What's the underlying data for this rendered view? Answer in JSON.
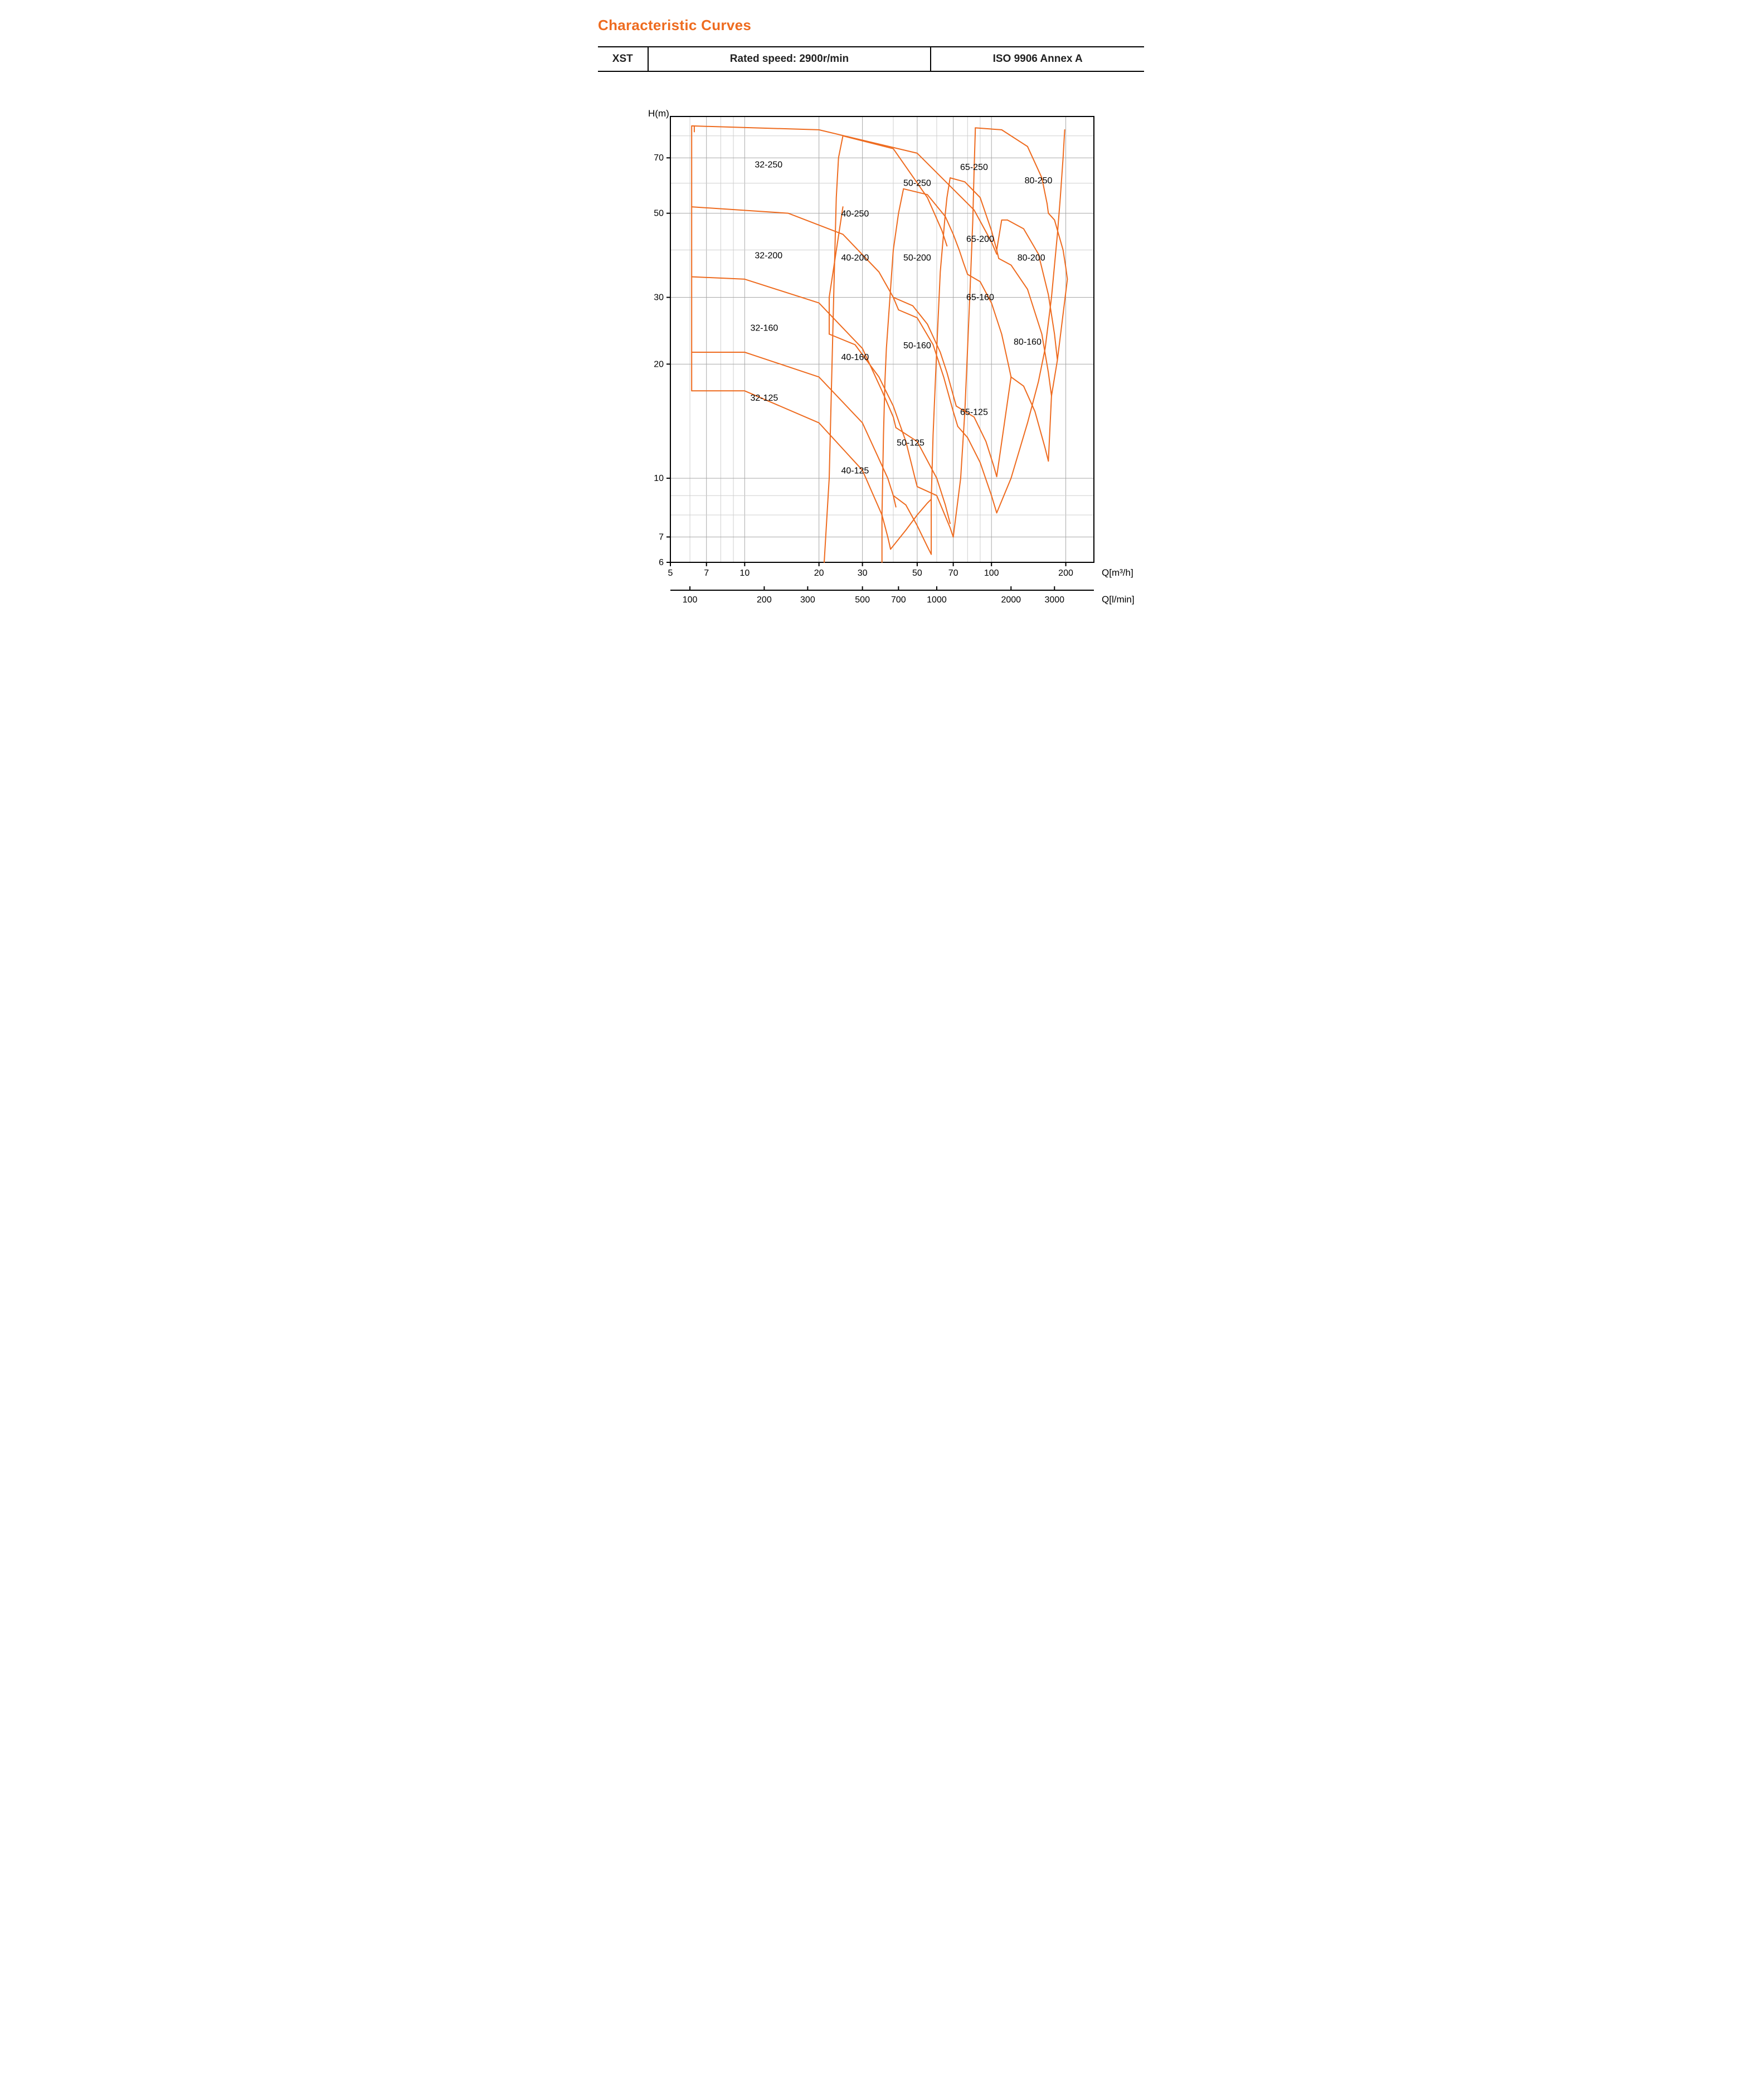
{
  "title": {
    "text": "Characteristic Curves",
    "color": "#ee6b1f",
    "fontsize": 26
  },
  "header": {
    "cells": [
      "XST",
      "Rated speed: 2900r/min",
      "ISO 9906    Annex A"
    ],
    "border_color": "#000000",
    "font_size": 19
  },
  "chart": {
    "type": "pump-selection-map-loglog",
    "curve_color": "#ee6b1f",
    "background_color": "#ffffff",
    "grid_major_color": "#a8a8a8",
    "grid_minor_color": "#cfcfcf",
    "yaxis": {
      "label": "H(m)",
      "scale": "log",
      "min": 6,
      "max": 90,
      "ticks": [
        6,
        7,
        10,
        20,
        30,
        50,
        70
      ],
      "minor": [
        6,
        7,
        8,
        9,
        10,
        20,
        30,
        40,
        50,
        60,
        70,
        80,
        90
      ]
    },
    "xaxis_top": {
      "label": "Q[m³/h]",
      "scale": "log",
      "min": 5,
      "max": 260,
      "ticks": [
        5,
        7,
        10,
        20,
        30,
        50,
        70,
        100,
        200
      ],
      "minor": [
        5,
        6,
        7,
        8,
        9,
        10,
        20,
        30,
        40,
        50,
        60,
        70,
        80,
        90,
        100,
        200
      ]
    },
    "xaxis_bottom": {
      "label": "Q[l/min]",
      "ticks_lmin": [
        100,
        200,
        300,
        500,
        700,
        1000,
        2000,
        3000
      ]
    },
    "region_labels": [
      {
        "text": "32-250",
        "q": 12.5,
        "h": 66
      },
      {
        "text": "40-250",
        "q": 28,
        "h": 49
      },
      {
        "text": "50-250",
        "q": 50,
        "h": 59
      },
      {
        "text": "65-250",
        "q": 85,
        "h": 65
      },
      {
        "text": "80-250",
        "q": 155,
        "h": 60
      },
      {
        "text": "32-200",
        "q": 12.5,
        "h": 38
      },
      {
        "text": "40-200",
        "q": 28,
        "h": 37.5
      },
      {
        "text": "50-200",
        "q": 50,
        "h": 37.5
      },
      {
        "text": "65-200",
        "q": 90,
        "h": 42
      },
      {
        "text": "80-200",
        "q": 145,
        "h": 37.5
      },
      {
        "text": "32-160",
        "q": 12,
        "h": 24.5
      },
      {
        "text": "40-160",
        "q": 28,
        "h": 20.5
      },
      {
        "text": "50-160",
        "q": 50,
        "h": 22
      },
      {
        "text": "65-160",
        "q": 90,
        "h": 29.5
      },
      {
        "text": "80-160",
        "q": 140,
        "h": 22.5
      },
      {
        "text": "32-125",
        "q": 12,
        "h": 16
      },
      {
        "text": "40-125",
        "q": 28,
        "h": 10.3
      },
      {
        "text": "50-125",
        "q": 47,
        "h": 12.2
      },
      {
        "text": "65-125",
        "q": 85,
        "h": 14.7
      }
    ],
    "curves_qh": [
      [
        [
          6.1,
          17
        ],
        [
          6.1,
          85
        ],
        [
          20,
          83
        ],
        [
          50,
          72
        ],
        [
          85,
          51
        ],
        [
          100,
          42
        ],
        [
          105,
          39
        ]
      ],
      [
        [
          6.1,
          17
        ],
        [
          10,
          17
        ],
        [
          20,
          14
        ],
        [
          30,
          10.5
        ],
        [
          36,
          8
        ],
        [
          38,
          7
        ],
        [
          39,
          6.5
        ]
      ],
      [
        [
          6.1,
          21.5
        ],
        [
          10,
          21.5
        ],
        [
          20,
          18.5
        ],
        [
          30,
          14
        ],
        [
          38,
          10
        ],
        [
          40,
          9
        ],
        [
          41,
          8.4
        ]
      ],
      [
        [
          6.1,
          34
        ],
        [
          10,
          33.5
        ],
        [
          20,
          29
        ],
        [
          30,
          22
        ],
        [
          36,
          17
        ],
        [
          40,
          14.5
        ],
        [
          41,
          13.6
        ]
      ],
      [
        [
          6.1,
          52
        ],
        [
          15,
          50
        ],
        [
          25,
          44
        ],
        [
          35,
          35
        ],
        [
          40,
          30
        ],
        [
          42,
          27.8
        ]
      ],
      [
        [
          6.25,
          82
        ],
        [
          6.25,
          85
        ]
      ],
      [
        [
          21,
          6
        ],
        [
          22,
          10
        ],
        [
          23,
          32
        ],
        [
          23.5,
          55
        ],
        [
          24,
          70
        ],
        [
          25,
          80
        ]
      ],
      [
        [
          25,
          80
        ],
        [
          40,
          74
        ],
        [
          55,
          55
        ],
        [
          63,
          45
        ],
        [
          66,
          41
        ]
      ],
      [
        [
          25,
          52
        ],
        [
          22,
          30
        ],
        [
          22,
          24
        ]
      ],
      [
        [
          36,
          6
        ],
        [
          36,
          8
        ],
        [
          36.5,
          13
        ],
        [
          37,
          18
        ],
        [
          37.5,
          22
        ],
        [
          40,
          40
        ],
        [
          42,
          50
        ],
        [
          44,
          58
        ]
      ],
      [
        [
          22,
          24
        ],
        [
          28,
          22.5
        ],
        [
          35,
          18.5
        ],
        [
          40,
          15.5
        ],
        [
          45,
          12.5
        ],
        [
          49,
          10
        ],
        [
          50,
          9.5
        ]
      ],
      [
        [
          40,
          9
        ],
        [
          45,
          8.5
        ],
        [
          50,
          7.5
        ],
        [
          55,
          6.6
        ],
        [
          57,
          6.3
        ]
      ],
      [
        [
          39,
          6.5
        ],
        [
          45,
          7.3
        ],
        [
          50,
          8
        ],
        [
          55,
          8.6
        ],
        [
          57,
          8.8
        ]
      ],
      [
        [
          57,
          6.3
        ],
        [
          57,
          8.8
        ],
        [
          58,
          13
        ],
        [
          60,
          22
        ],
        [
          62,
          35
        ],
        [
          65,
          50
        ],
        [
          66,
          55
        ],
        [
          68,
          62
        ]
      ],
      [
        [
          44,
          58
        ],
        [
          55,
          56
        ],
        [
          65,
          49
        ],
        [
          70,
          44
        ],
        [
          74,
          40
        ],
        [
          77,
          37
        ],
        [
          80,
          34.5
        ]
      ],
      [
        [
          41,
          13.6
        ],
        [
          50,
          12.5
        ],
        [
          60,
          10
        ],
        [
          65,
          8.5
        ],
        [
          68,
          7.6
        ]
      ],
      [
        [
          50,
          9.5
        ],
        [
          60,
          9
        ],
        [
          68,
          7.4
        ],
        [
          70,
          7
        ]
      ],
      [
        [
          40,
          30
        ],
        [
          48,
          28.5
        ],
        [
          55,
          25.5
        ],
        [
          62,
          21.5
        ],
        [
          66,
          19
        ],
        [
          71,
          16
        ],
        [
          72,
          15.5
        ]
      ],
      [
        [
          42,
          27.8
        ],
        [
          50,
          26.5
        ],
        [
          58,
          22.5
        ],
        [
          64,
          18.5
        ],
        [
          70,
          15
        ],
        [
          73,
          13.7
        ]
      ],
      [
        [
          68,
          62
        ],
        [
          78,
          60.5
        ],
        [
          90,
          55
        ],
        [
          100,
          45
        ],
        [
          105,
          40
        ],
        [
          107,
          38
        ]
      ],
      [
        [
          70,
          7
        ],
        [
          75,
          10
        ],
        [
          78,
          15
        ],
        [
          80,
          22
        ],
        [
          82,
          32
        ],
        [
          84,
          48
        ],
        [
          85,
          65
        ],
        [
          86,
          83
        ],
        [
          86,
          84
        ]
      ],
      [
        [
          86,
          84
        ],
        [
          110,
          83
        ],
        [
          140,
          75
        ],
        [
          160,
          62
        ],
        [
          168,
          53
        ],
        [
          170,
          50
        ]
      ],
      [
        [
          80,
          34.5
        ],
        [
          90,
          33
        ],
        [
          100,
          29
        ],
        [
          110,
          24
        ],
        [
          118,
          19.5
        ],
        [
          120,
          18.5
        ]
      ],
      [
        [
          72,
          15.5
        ],
        [
          85,
          14.5
        ],
        [
          95,
          12.5
        ],
        [
          102,
          10.8
        ],
        [
          105,
          10.1
        ]
      ],
      [
        [
          73,
          13.7
        ],
        [
          80,
          12.8
        ],
        [
          90,
          11
        ],
        [
          100,
          9
        ],
        [
          105,
          8.1
        ]
      ],
      [
        [
          107,
          38
        ],
        [
          120,
          36.5
        ],
        [
          140,
          31.5
        ],
        [
          160,
          24
        ],
        [
          170,
          19
        ],
        [
          175,
          16.5
        ]
      ],
      [
        [
          105,
          40
        ],
        [
          110,
          48
        ],
        [
          116,
          48
        ]
      ],
      [
        [
          116,
          48
        ],
        [
          135,
          45.5
        ],
        [
          155,
          39
        ],
        [
          170,
          30.5
        ],
        [
          180,
          24
        ],
        [
          185,
          20.5
        ]
      ],
      [
        [
          120,
          18.5
        ],
        [
          135,
          17.5
        ],
        [
          150,
          15
        ],
        [
          165,
          12
        ],
        [
          170,
          11.1
        ]
      ],
      [
        [
          105,
          8.1
        ],
        [
          120,
          10
        ],
        [
          140,
          14
        ],
        [
          155,
          18
        ],
        [
          165,
          22
        ],
        [
          175,
          30
        ],
        [
          185,
          44
        ],
        [
          190,
          55
        ],
        [
          195,
          70
        ],
        [
          198,
          83
        ]
      ],
      [
        [
          170,
          50
        ],
        [
          180,
          48
        ],
        [
          195,
          40
        ],
        [
          200,
          36
        ],
        [
          203,
          33.5
        ]
      ],
      [
        [
          170,
          11.1
        ],
        [
          175,
          16.5
        ]
      ],
      [
        [
          175,
          16.5
        ],
        [
          185,
          20.5
        ]
      ],
      [
        [
          185,
          20.5
        ],
        [
          203,
          33.5
        ]
      ],
      [
        [
          105,
          10.1
        ],
        [
          120,
          18.5
        ]
      ]
    ]
  }
}
